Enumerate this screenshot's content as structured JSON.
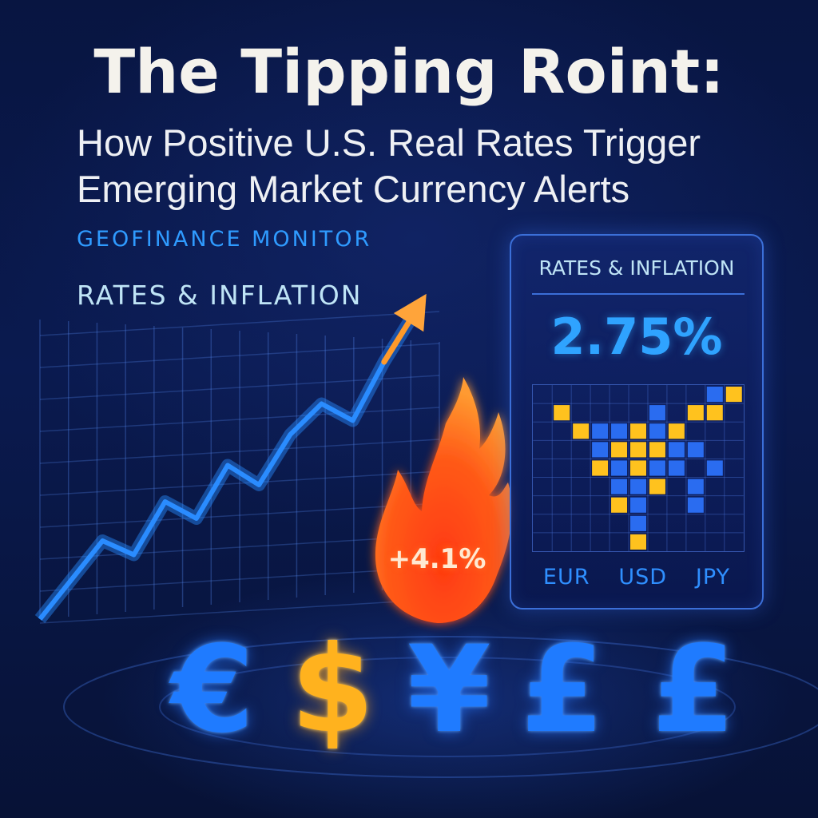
{
  "header": {
    "title": "The Tipping Roint:",
    "subtitle_line1": "How Positive U.S. Real Rates Trigger",
    "subtitle_line2": "Emerging Market Currency Alerts"
  },
  "brand": "GEOFINANCE MONITOR",
  "section_label": "RATES & INFLATION",
  "flame": {
    "label": "+4.1%",
    "icon": "flame-icon"
  },
  "panel": {
    "title": "RATES & INFLATION",
    "value": "2.75%",
    "currencies": [
      "EUR",
      "USD",
      "JPY"
    ]
  },
  "symbols": [
    {
      "glyph": "€",
      "icon": "euro-icon",
      "color": "#1f7bff"
    },
    {
      "glyph": "$",
      "icon": "dollar-icon",
      "color": "#ffb21e"
    },
    {
      "glyph": "¥",
      "icon": "yen-icon",
      "color": "#1f7bff"
    },
    {
      "glyph": "£",
      "icon": "pound-icon",
      "color": "#1f7bff"
    },
    {
      "glyph": "£",
      "icon": "pound-icon",
      "color": "#1f7bff"
    }
  ],
  "chart_data": {
    "type": "line",
    "x": [
      0,
      1,
      2,
      3,
      4,
      5,
      6,
      7,
      8,
      9,
      10,
      11,
      12
    ],
    "values": [
      0,
      1.4,
      2.8,
      2.3,
      4.2,
      3.6,
      5.5,
      4.8,
      6.6,
      7.7,
      7.1,
      9.2,
      11.0
    ],
    "ylim": [
      0,
      11
    ],
    "grid": true,
    "color": "#2a8cff",
    "arrow_color": "#ff9a2a"
  },
  "colors": {
    "background": "#081541",
    "accent_blue": "#2f9bff",
    "accent_gold": "#ffb21e",
    "flame_red": "#ff3a10"
  }
}
